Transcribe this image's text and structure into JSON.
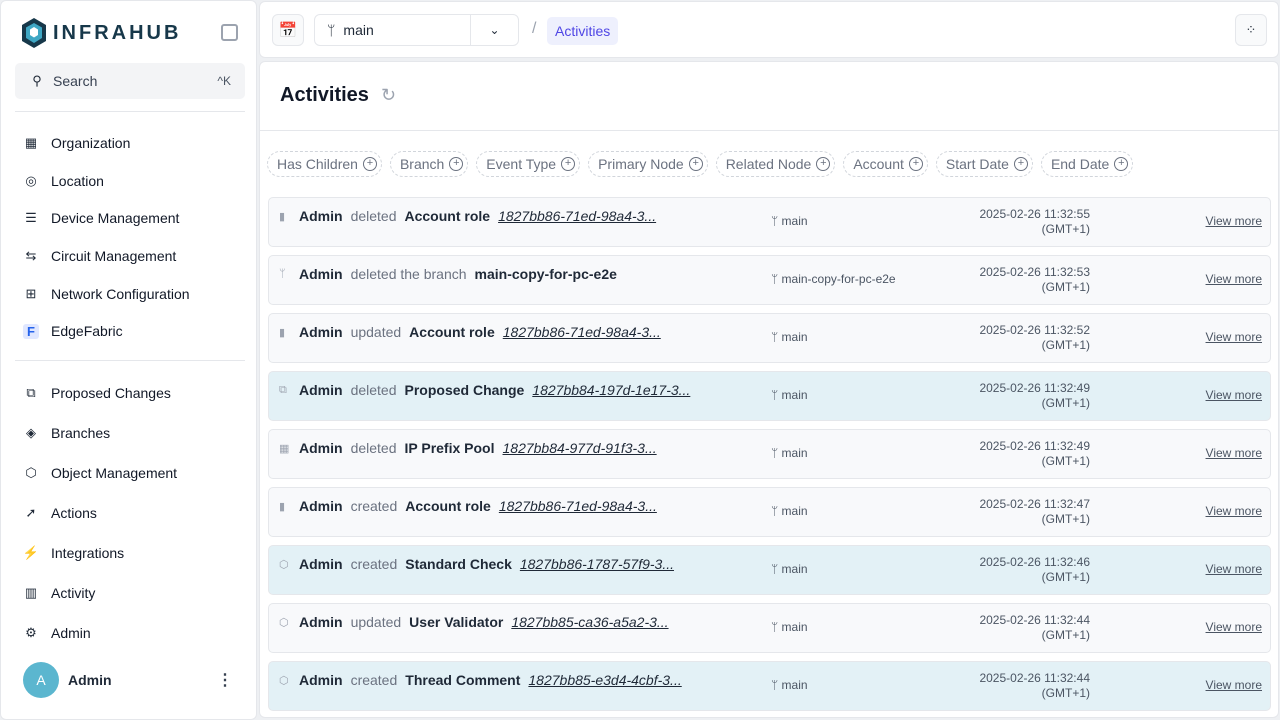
{
  "sidebar": {
    "logo_text": "INFRAHUB",
    "search": {
      "label": "Search",
      "shortcut": "^K"
    },
    "groups": [
      {
        "label": "Organization",
        "icon": "building-icon",
        "glyph": "▦"
      },
      {
        "label": "Location",
        "icon": "map-pin-icon",
        "glyph": "◎"
      },
      {
        "label": "Device Management",
        "icon": "server-icon",
        "glyph": "☰"
      },
      {
        "label": "Circuit Management",
        "icon": "circuit-icon",
        "glyph": "⇆"
      },
      {
        "label": "Network Configuration",
        "icon": "network-icon",
        "glyph": "⊞"
      },
      {
        "label": "EdgeFabric",
        "icon": "edgefabric-icon",
        "glyph": "F"
      }
    ],
    "items": [
      {
        "label": "Proposed Changes",
        "icon": "proposed-changes-icon",
        "glyph": "⧉"
      },
      {
        "label": "Branches",
        "icon": "layers-icon",
        "glyph": "◈"
      },
      {
        "label": "Object Management",
        "icon": "cube-icon",
        "glyph": "⬡"
      },
      {
        "label": "Actions",
        "icon": "rocket-icon",
        "glyph": "➚"
      },
      {
        "label": "Integrations",
        "icon": "plug-icon",
        "glyph": "⚡"
      },
      {
        "label": "Activity",
        "icon": "chart-icon",
        "glyph": "▥"
      },
      {
        "label": "Admin",
        "icon": "gear-icon",
        "glyph": "⚙"
      }
    ],
    "user": {
      "initial": "A",
      "name": "Admin"
    }
  },
  "topbar": {
    "branch": "main",
    "breadcrumb": "Activities"
  },
  "main": {
    "title": "Activities",
    "filters": [
      "Has Children",
      "Branch",
      "Event Type",
      "Primary Node",
      "Related Node",
      "Account",
      "Start Date",
      "End Date"
    ],
    "view_more": "View more",
    "rows": [
      {
        "actor": "Admin",
        "action": "deleted",
        "kind": "Account role",
        "id": "1827bb86-71ed-98a4-3...",
        "branch": "main",
        "date": "2025-02-26 11:32:55",
        "tz": "(GMT+1)",
        "icon": "clipboard-icon",
        "glyph": "▮",
        "highlight": false
      },
      {
        "actor": "Admin",
        "action": "deleted the branch",
        "kind": "main-copy-for-pc-e2e",
        "id": "",
        "branch": "main-copy-for-pc-e2e",
        "date": "2025-02-26 11:32:53",
        "tz": "(GMT+1)",
        "icon": "git-branch-icon",
        "glyph": "ᛘ",
        "highlight": false
      },
      {
        "actor": "Admin",
        "action": "updated",
        "kind": "Account role",
        "id": "1827bb86-71ed-98a4-3...",
        "branch": "main",
        "date": "2025-02-26 11:32:52",
        "tz": "(GMT+1)",
        "icon": "clipboard-icon",
        "glyph": "▮",
        "highlight": false
      },
      {
        "actor": "Admin",
        "action": "deleted",
        "kind": "Proposed Change",
        "id": "1827bb84-197d-1e17-3...",
        "branch": "main",
        "date": "2025-02-26 11:32:49",
        "tz": "(GMT+1)",
        "icon": "proposed-change-icon",
        "glyph": "⧉",
        "highlight": true
      },
      {
        "actor": "Admin",
        "action": "deleted",
        "kind": "IP Prefix Pool",
        "id": "1827bb84-977d-91f3-3...",
        "branch": "main",
        "date": "2025-02-26 11:32:49",
        "tz": "(GMT+1)",
        "icon": "grid-icon",
        "glyph": "▦",
        "highlight": false
      },
      {
        "actor": "Admin",
        "action": "created",
        "kind": "Account role",
        "id": "1827bb86-71ed-98a4-3...",
        "branch": "main",
        "date": "2025-02-26 11:32:47",
        "tz": "(GMT+1)",
        "icon": "clipboard-icon",
        "glyph": "▮",
        "highlight": false
      },
      {
        "actor": "Admin",
        "action": "created",
        "kind": "Standard Check",
        "id": "1827bb86-1787-57f9-3...",
        "branch": "main",
        "date": "2025-02-26 11:32:46",
        "tz": "(GMT+1)",
        "icon": "cube-icon",
        "glyph": "⬡",
        "highlight": true
      },
      {
        "actor": "Admin",
        "action": "updated",
        "kind": "User Validator",
        "id": "1827bb85-ca36-a5a2-3...",
        "branch": "main",
        "date": "2025-02-26 11:32:44",
        "tz": "(GMT+1)",
        "icon": "cube-icon",
        "glyph": "⬡",
        "highlight": false
      },
      {
        "actor": "Admin",
        "action": "created",
        "kind": "Thread Comment",
        "id": "1827bb85-e3d4-4cbf-3...",
        "branch": "main",
        "date": "2025-02-26 11:32:44",
        "tz": "(GMT+1)",
        "icon": "cube-icon",
        "glyph": "⬡",
        "highlight": true
      }
    ]
  }
}
